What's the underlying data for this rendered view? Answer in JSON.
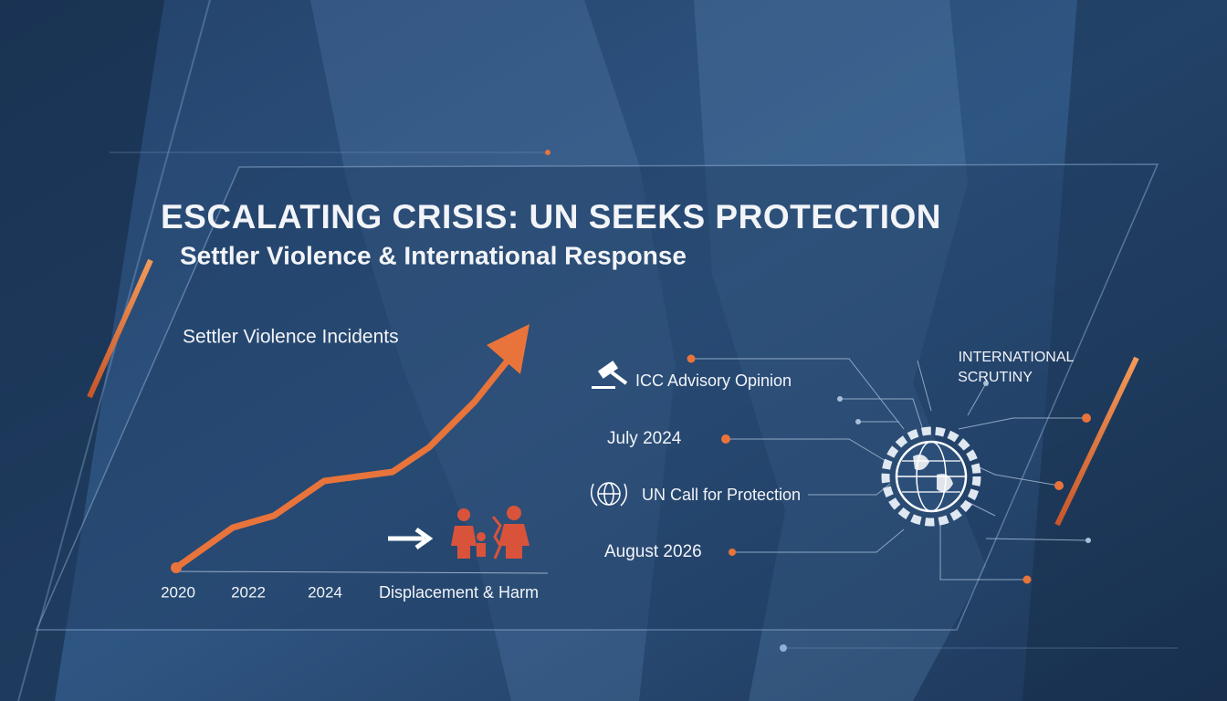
{
  "header": {
    "title": "ESCALATING CRISIS: UN SEEKS PROTECTION",
    "subtitle": "Settler Violence & International Response"
  },
  "trend": {
    "label": "Settler Violence Incidents",
    "years": [
      "2020",
      "2022",
      "2024"
    ],
    "outcome": "Displacement & Harm"
  },
  "timeline": [
    {
      "label": "ICC Advisory Opinion"
    },
    {
      "label": "July 2024"
    },
    {
      "label": "UN Call for Protection"
    },
    {
      "label": "August 2026"
    }
  ],
  "hub": {
    "label": [
      "INTERNATIONAL",
      "SCRUTINY"
    ]
  }
}
